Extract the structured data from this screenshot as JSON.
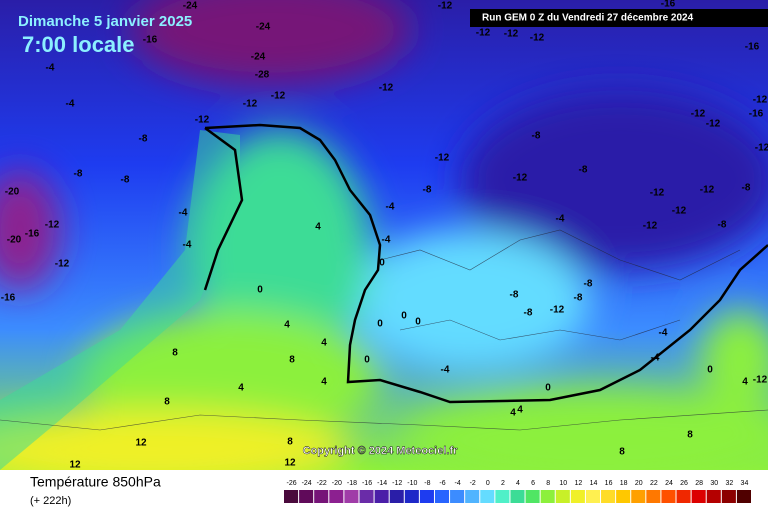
{
  "title": "Dimanche 5 janvier 2025",
  "time": "7:00 locale",
  "run": "Run GEM 0 Z du Vendredi 27 décembre 2024",
  "copyright": "Copyright © 2024 Meteociel.fr",
  "variable": "Température 850hPa",
  "lead": "(+ 222h)",
  "scale": [
    {
      "value": -26,
      "color": "#4a0a3c"
    },
    {
      "value": -24,
      "color": "#600a5a"
    },
    {
      "value": -22,
      "color": "#761478"
    },
    {
      "value": -20,
      "color": "#8c2090"
    },
    {
      "value": -18,
      "color": "#a03ca8"
    },
    {
      "value": -16,
      "color": "#6a2ca8"
    },
    {
      "value": -14,
      "color": "#4a1ea8"
    },
    {
      "value": -12,
      "color": "#2a1ea8"
    },
    {
      "value": -10,
      "color": "#1e28c8"
    },
    {
      "value": -8,
      "color": "#1e3cf0"
    },
    {
      "value": -6,
      "color": "#2864ff"
    },
    {
      "value": -4,
      "color": "#3c8cff"
    },
    {
      "value": -2,
      "color": "#50b4ff"
    },
    {
      "value": 0,
      "color": "#64dcff"
    },
    {
      "value": 2,
      "color": "#50f0c8"
    },
    {
      "value": 4,
      "color": "#3cdc96"
    },
    {
      "value": 6,
      "color": "#50e664"
    },
    {
      "value": 8,
      "color": "#8cf03c"
    },
    {
      "value": 10,
      "color": "#c8f028"
    },
    {
      "value": 12,
      "color": "#f0f028"
    },
    {
      "value": 14,
      "color": "#fff050"
    },
    {
      "value": 16,
      "color": "#ffdc28"
    },
    {
      "value": 18,
      "color": "#ffc800"
    },
    {
      "value": 20,
      "color": "#ffa000"
    },
    {
      "value": 22,
      "color": "#ff7800"
    },
    {
      "value": 24,
      "color": "#ff5000"
    },
    {
      "value": 26,
      "color": "#f02800"
    },
    {
      "value": 28,
      "color": "#dc0000"
    },
    {
      "value": 30,
      "color": "#b40000"
    },
    {
      "value": 32,
      "color": "#8c0000"
    },
    {
      "value": 34,
      "color": "#500000"
    }
  ],
  "contour_labels": [
    -24,
    -24,
    -16,
    -12,
    -16,
    -4,
    -24,
    -28,
    -12,
    -12,
    -12,
    -4,
    -12,
    -8,
    -8,
    -8,
    -20,
    -16,
    -12,
    -20,
    -12,
    -16,
    -4,
    -4,
    4,
    0,
    4,
    8,
    4,
    4,
    4,
    8,
    8,
    12,
    12,
    8,
    12,
    -4,
    -4,
    0,
    0,
    0,
    0,
    0,
    -4,
    0,
    4,
    4,
    8,
    8,
    -12,
    -8,
    -12,
    -8,
    -8,
    -12,
    -12,
    -8,
    -12,
    -12,
    -8,
    -4,
    -8,
    -8,
    -8,
    -12,
    -8,
    -4,
    -4,
    0,
    -12,
    -12,
    -16,
    -12,
    -16,
    -12,
    -12,
    -12,
    -12,
    4,
    -12
  ]
}
